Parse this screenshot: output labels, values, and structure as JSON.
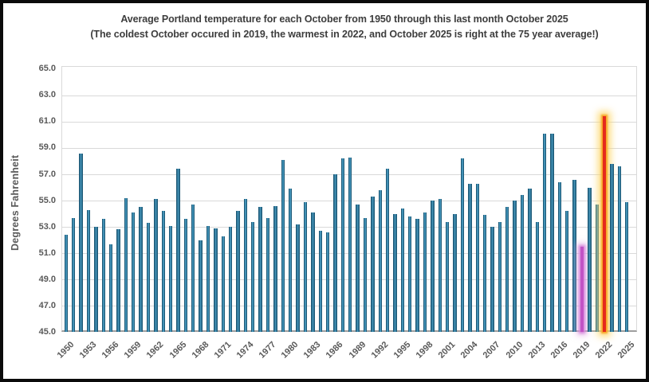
{
  "title": {
    "line1": "Average Portland temperature for each October from 1950 through this last month October 2025",
    "line2": "(The coldest October occured in 2019, the warmest in 2022, and October 2025 is right at the 75 year average!)"
  },
  "chart_data": {
    "type": "bar",
    "title": "Average Portland temperature for each October from 1950 through this last month October 2025",
    "subtitle": "(The coldest October occured in 2019, the warmest in 2022, and October 2025 is right at the 75 year average!)",
    "xlabel": "",
    "ylabel": "Degrees Fahrenheit",
    "ylim": [
      45.0,
      65.0
    ],
    "grid": true,
    "legend": false,
    "y_ticks": [
      "65.0",
      "63.0",
      "61.0",
      "59.0",
      "57.0",
      "55.0",
      "53.0",
      "51.0",
      "49.0",
      "47.0",
      "45.0"
    ],
    "x_ticks": [
      1950,
      1953,
      1956,
      1959,
      1962,
      1965,
      1968,
      1971,
      1974,
      1977,
      1980,
      1983,
      1986,
      1989,
      1992,
      1995,
      1998,
      2001,
      2004,
      2007,
      2010,
      2013,
      2016,
      2019,
      2022,
      2025
    ],
    "years": [
      1950,
      1951,
      1952,
      1953,
      1954,
      1955,
      1956,
      1957,
      1958,
      1959,
      1960,
      1961,
      1962,
      1963,
      1964,
      1965,
      1966,
      1967,
      1968,
      1969,
      1970,
      1971,
      1972,
      1973,
      1974,
      1975,
      1976,
      1977,
      1978,
      1979,
      1980,
      1981,
      1982,
      1983,
      1984,
      1985,
      1986,
      1987,
      1988,
      1989,
      1990,
      1991,
      1992,
      1993,
      1994,
      1995,
      1996,
      1997,
      1998,
      1999,
      2000,
      2001,
      2002,
      2003,
      2004,
      2005,
      2006,
      2007,
      2008,
      2009,
      2010,
      2011,
      2012,
      2013,
      2014,
      2015,
      2016,
      2017,
      2018,
      2019,
      2020,
      2021,
      2022,
      2023,
      2024,
      2025
    ],
    "values": [
      52.4,
      53.7,
      58.6,
      54.3,
      53.0,
      53.6,
      51.7,
      52.8,
      55.2,
      54.1,
      54.5,
      53.3,
      55.1,
      54.2,
      53.1,
      57.4,
      53.6,
      54.7,
      52.0,
      53.1,
      52.9,
      52.3,
      53.0,
      54.2,
      55.1,
      53.4,
      54.5,
      53.7,
      54.6,
      58.1,
      55.9,
      53.2,
      54.9,
      54.1,
      52.7,
      52.6,
      57.0,
      58.2,
      58.3,
      54.7,
      53.7,
      55.3,
      55.8,
      57.4,
      54.0,
      54.4,
      53.8,
      53.6,
      54.1,
      55.0,
      55.1,
      53.4,
      54.0,
      58.2,
      56.3,
      56.3,
      53.9,
      53.0,
      53.4,
      54.5,
      55.0,
      55.4,
      55.9,
      53.4,
      60.1,
      60.1,
      56.4,
      54.2,
      56.6,
      51.5,
      56.0,
      54.7,
      61.4,
      57.8,
      57.6,
      54.9
    ],
    "highlights": {
      "cold_year": 2019,
      "warm_year": 2022,
      "cold_core_color": "#c153c5",
      "cold_glow_color": "#dfa0e2",
      "warm_core_color": "#e52a1c",
      "warm_glow_inner": "#f7a01e",
      "warm_glow_outer": "#fdd667"
    },
    "bar_color_edge": "#1e5a78",
    "bar_color_center": "#4190b4",
    "gridline_color": "#d9d9d9",
    "axis_line_color": "#9e9e9e",
    "text_color": "#595959"
  }
}
